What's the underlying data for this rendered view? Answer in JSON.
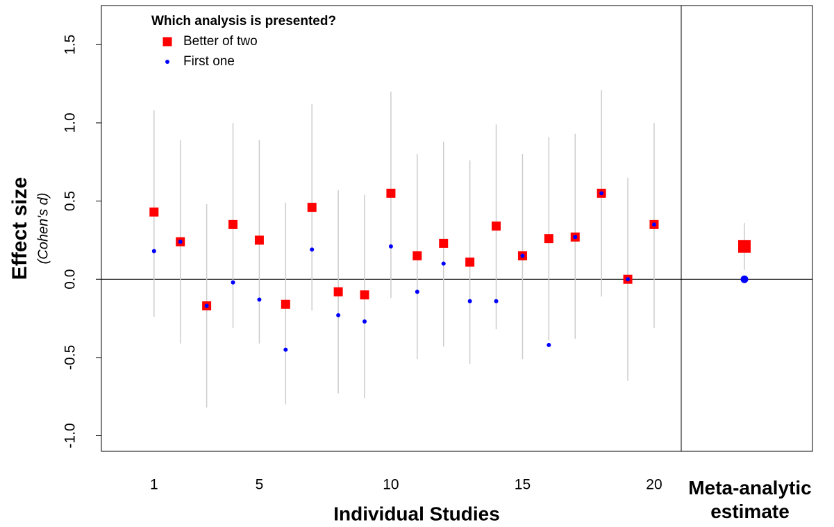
{
  "chart_data": {
    "type": "scatter",
    "legend_title": "Which analysis is presented?",
    "xlabel": "Individual Studies",
    "ylabel": "Effect size",
    "ylabel_sub": "(Cohen's d)",
    "meta_label": "Meta-analytic estimate",
    "x": [
      1,
      2,
      3,
      4,
      5,
      6,
      7,
      8,
      9,
      10,
      11,
      12,
      13,
      14,
      15,
      16,
      17,
      18,
      19,
      20
    ],
    "xlim": [
      -1,
      21.03
    ],
    "xticks": [
      1,
      5,
      10,
      15,
      20
    ],
    "ylim": [
      -1.1,
      1.75
    ],
    "yticks": [
      {
        "value": -1,
        "label": "-1.0"
      },
      -0.5,
      {
        "value": 0,
        "label": "0.0"
      },
      0.5,
      {
        "value": 1,
        "label": "1.0"
      },
      1.5
    ],
    "ci_color": "#cccccc",
    "series": [
      {
        "name": "Better of two",
        "color": "#ff0000",
        "marker": "square",
        "values": [
          0.43,
          0.24,
          -0.17,
          0.35,
          0.25,
          -0.16,
          0.46,
          -0.08,
          -0.1,
          0.55,
          0.15,
          0.23,
          0.11,
          0.34,
          0.15,
          0.26,
          0.27,
          0.55,
          0.0,
          0.35
        ],
        "ci_low": [
          -0.24,
          -0.41,
          -0.82,
          -0.31,
          -0.41,
          -0.8,
          -0.2,
          -0.73,
          -0.76,
          -0.12,
          -0.51,
          -0.43,
          -0.54,
          -0.32,
          -0.51,
          -0.39,
          -0.38,
          -0.11,
          -0.65,
          -0.31
        ],
        "ci_high": [
          1.08,
          0.89,
          0.48,
          1.0,
          0.89,
          0.49,
          1.12,
          0.57,
          0.54,
          1.2,
          0.8,
          0.88,
          0.76,
          0.99,
          0.8,
          0.91,
          0.93,
          1.21,
          0.65,
          1.0
        ],
        "meta": 0.21,
        "meta_ci_low": 0.06,
        "meta_ci_high": 0.36
      },
      {
        "name": "First one",
        "color": "#0000ff",
        "marker": "circle",
        "values": [
          0.18,
          0.24,
          -0.17,
          -0.02,
          -0.13,
          -0.45,
          0.19,
          -0.23,
          -0.27,
          0.21,
          -0.08,
          0.1,
          -0.14,
          -0.14,
          0.15,
          -0.42,
          0.27,
          0.55,
          0.0,
          0.35
        ],
        "meta": 0.0
      }
    ]
  }
}
